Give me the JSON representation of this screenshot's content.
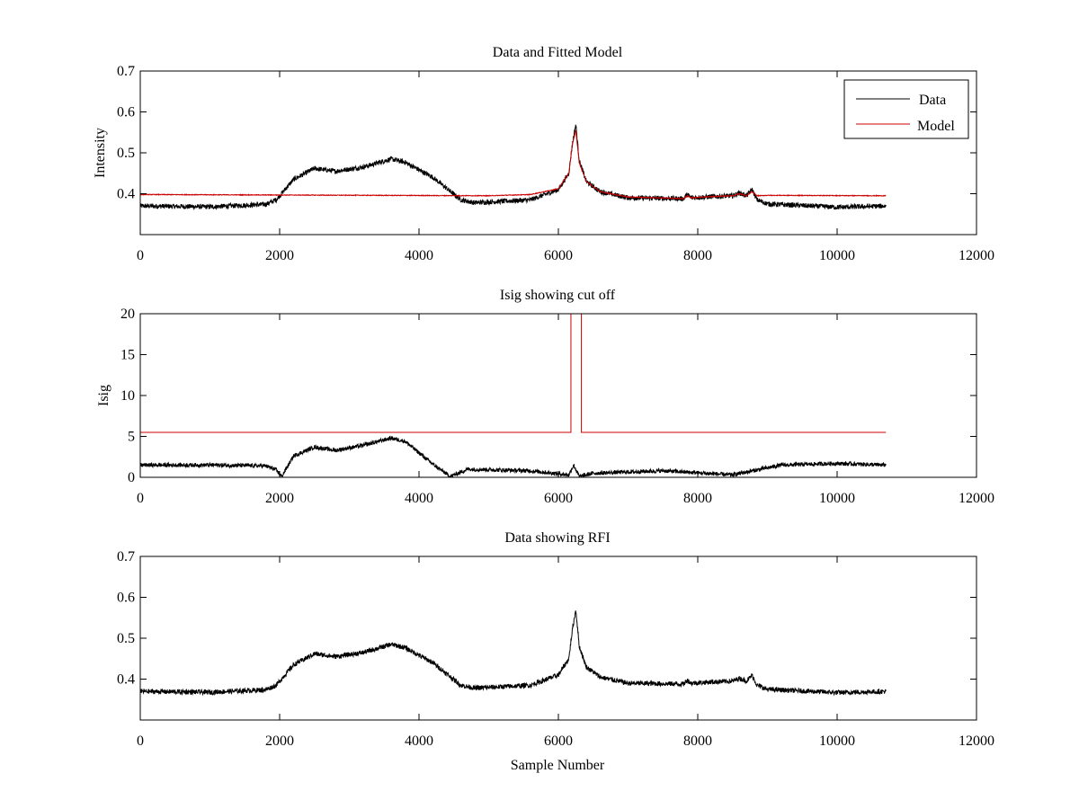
{
  "chart_data": [
    {
      "type": "line",
      "title": "Data and Fitted Model",
      "xlabel": "",
      "ylabel": "Intensity",
      "xlim": [
        0,
        12000
      ],
      "ylim": [
        0.3,
        0.7
      ],
      "xticks": [
        0,
        2000,
        4000,
        6000,
        8000,
        10000,
        12000
      ],
      "xtick_labels": [
        "0",
        "2000",
        "4000",
        "6000",
        "8000",
        "10000",
        "12000"
      ],
      "yticks": [
        0.4,
        0.5,
        0.6,
        0.7
      ],
      "ytick_labels": [
        "0.4",
        "0.5",
        "0.6",
        "0.7"
      ],
      "grid": false,
      "legend": "top-right",
      "series": [
        {
          "name": "Data",
          "color": "#000000",
          "noise": 0.006,
          "x": [
            0,
            1000,
            1800,
            1950,
            2200,
            2500,
            2800,
            3200,
            3600,
            3800,
            4200,
            4600,
            4800,
            5600,
            6000,
            6150,
            6200,
            6250,
            6300,
            6400,
            6600,
            7000,
            7800,
            7850,
            7900,
            8200,
            8500,
            8600,
            8700,
            8780,
            8850,
            9000,
            10000,
            10700
          ],
          "y": [
            0.37,
            0.368,
            0.374,
            0.385,
            0.435,
            0.462,
            0.455,
            0.465,
            0.485,
            0.477,
            0.44,
            0.385,
            0.378,
            0.385,
            0.41,
            0.45,
            0.52,
            0.57,
            0.48,
            0.43,
            0.405,
            0.39,
            0.388,
            0.398,
            0.39,
            0.393,
            0.395,
            0.402,
            0.395,
            0.41,
            0.385,
            0.375,
            0.367,
            0.37
          ]
        },
        {
          "name": "Model",
          "color": "#cc0000",
          "noise": 0.0008,
          "x": [
            0,
            5000,
            5600,
            6000,
            6150,
            6200,
            6250,
            6300,
            6400,
            6600,
            7000,
            7800,
            7850,
            7900,
            8200,
            8500,
            8600,
            8700,
            8780,
            8850,
            9000,
            10700
          ],
          "y": [
            0.398,
            0.395,
            0.398,
            0.412,
            0.45,
            0.52,
            0.555,
            0.475,
            0.43,
            0.405,
            0.392,
            0.388,
            0.395,
            0.39,
            0.393,
            0.395,
            0.4,
            0.395,
            0.405,
            0.395,
            0.396,
            0.395
          ]
        }
      ]
    },
    {
      "type": "line",
      "title": "Isig showing cut off",
      "xlabel": "",
      "ylabel": "Isig",
      "xlim": [
        0,
        12000
      ],
      "ylim": [
        0,
        20
      ],
      "xticks": [
        0,
        2000,
        4000,
        6000,
        8000,
        10000,
        12000
      ],
      "xtick_labels": [
        "0",
        "2000",
        "4000",
        "6000",
        "8000",
        "10000",
        "12000"
      ],
      "yticks": [
        0,
        5,
        10,
        15,
        20
      ],
      "ytick_labels": [
        "0",
        "5",
        "10",
        "15",
        "20"
      ],
      "grid": false,
      "legend": "none",
      "series": [
        {
          "name": "",
          "color": "#000000",
          "noise": 0.25,
          "x": [
            0,
            1000,
            1800,
            1950,
            2030,
            2200,
            2500,
            2800,
            3200,
            3600,
            3800,
            4200,
            4450,
            4700,
            5600,
            6150,
            6220,
            6300,
            6500,
            7500,
            8500,
            9200,
            10000,
            10700
          ],
          "y": [
            1.5,
            1.5,
            1.4,
            0.9,
            0.1,
            2.6,
            3.7,
            3.3,
            3.9,
            4.8,
            4.4,
            1.6,
            0.1,
            1.0,
            0.8,
            0.3,
            1.5,
            0.1,
            0.5,
            0.8,
            0.3,
            1.5,
            1.7,
            1.5
          ]
        },
        {
          "name": "",
          "color": "#cc0000",
          "noise": 0,
          "x": [
            0,
            6180,
            6180,
            6330,
            6330,
            10700
          ],
          "y": [
            5.5,
            5.5,
            20,
            20,
            5.5,
            5.5
          ]
        }
      ]
    },
    {
      "type": "line",
      "title": "Data showing RFI",
      "xlabel": "Sample Number",
      "ylabel": "",
      "xlim": [
        0,
        12000
      ],
      "ylim": [
        0.3,
        0.7
      ],
      "xticks": [
        0,
        2000,
        4000,
        6000,
        8000,
        10000,
        12000
      ],
      "xtick_labels": [
        "0",
        "2000",
        "4000",
        "6000",
        "8000",
        "10000",
        "12000"
      ],
      "yticks": [
        0.4,
        0.5,
        0.6,
        0.7
      ],
      "ytick_labels": [
        "0.4",
        "0.5",
        "0.6",
        "0.7"
      ],
      "grid": false,
      "legend": "none",
      "series": [
        {
          "name": "",
          "color": "#000000",
          "noise": 0.006,
          "x": [
            0,
            1000,
            1800,
            1950,
            2200,
            2500,
            2800,
            3200,
            3600,
            3800,
            4200,
            4600,
            4800,
            5600,
            6000,
            6150,
            6200,
            6250,
            6300,
            6400,
            6600,
            7000,
            7800,
            7850,
            7900,
            8200,
            8500,
            8600,
            8700,
            8780,
            8850,
            9000,
            10000,
            10700
          ],
          "y": [
            0.37,
            0.368,
            0.374,
            0.385,
            0.435,
            0.462,
            0.455,
            0.465,
            0.485,
            0.477,
            0.44,
            0.385,
            0.378,
            0.385,
            0.41,
            0.45,
            0.52,
            0.57,
            0.48,
            0.43,
            0.405,
            0.39,
            0.388,
            0.398,
            0.39,
            0.393,
            0.395,
            0.402,
            0.395,
            0.41,
            0.385,
            0.375,
            0.367,
            0.37
          ]
        }
      ]
    }
  ]
}
